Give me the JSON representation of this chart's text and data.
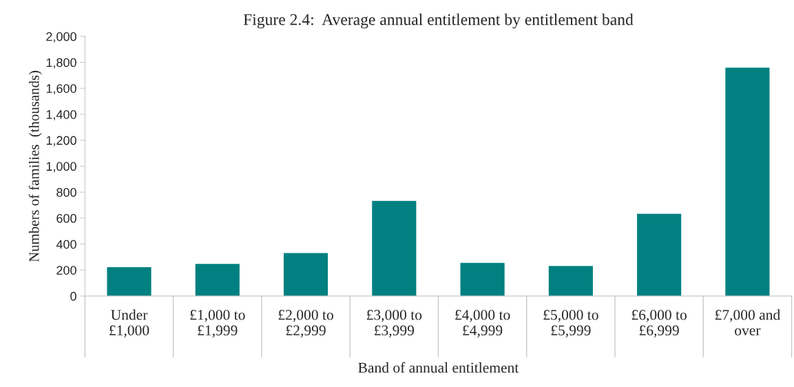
{
  "chart_data": {
    "type": "bar",
    "title": "Figure 2.4:  Average annual entitlement by entitlement band",
    "xlabel": "Band of annual entitlement",
    "ylabel": "Numbers of families  (thousands)",
    "categories": [
      "Under\n£1,000",
      "£1,000 to\n£1,999",
      "£2,000 to\n£2,999",
      "£3,000 to\n£3,999",
      "£4,000 to\n£4,999",
      "£5,000 to\n£5,999",
      "£6,000 to\n£6,999",
      "£7,000 and\nover"
    ],
    "values": [
      223,
      248,
      331,
      733,
      256,
      231,
      633,
      1759
    ],
    "color": "#008080",
    "ylim": [
      0,
      2000
    ],
    "yticks": [
      {
        "value": 0,
        "label": "0"
      },
      {
        "value": 200,
        "label": "200"
      },
      {
        "value": 400,
        "label": "400"
      },
      {
        "value": 600,
        "label": "600"
      },
      {
        "value": 800,
        "label": "800"
      },
      {
        "value": 1000,
        "label": "1,000"
      },
      {
        "value": 1200,
        "label": "1,200"
      },
      {
        "value": 1400,
        "label": "1,400"
      },
      {
        "value": 1600,
        "label": "1,600"
      },
      {
        "value": 1800,
        "label": "1,800"
      },
      {
        "value": 2000,
        "label": "2,000"
      }
    ],
    "grid": false,
    "legend": false
  }
}
